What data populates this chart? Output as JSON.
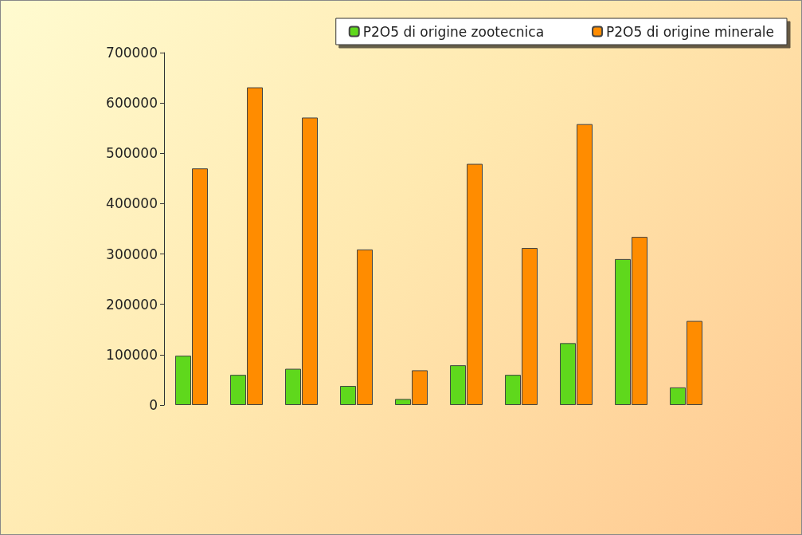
{
  "chart_data": {
    "type": "bar",
    "categories": [
      null,
      null,
      null,
      null,
      null,
      null,
      null,
      null,
      null,
      null
    ],
    "series": [
      {
        "name": "P2O5 di origine zootecnica",
        "color": "#5fd81c",
        "values": [
          98000,
          60000,
          72000,
          38000,
          12000,
          79000,
          60000,
          123000,
          290000,
          35000
        ]
      },
      {
        "name": "P2O5 di origine minerale",
        "color": "#ff8c00",
        "values": [
          470000,
          631000,
          571000,
          309000,
          69000,
          479000,
          312000,
          558000,
          334000,
          167000
        ]
      }
    ],
    "ylim": [
      0,
      700000
    ],
    "yticks": [
      0,
      100000,
      200000,
      300000,
      400000,
      500000,
      600000,
      700000
    ],
    "grid": false,
    "legend": "top right"
  }
}
